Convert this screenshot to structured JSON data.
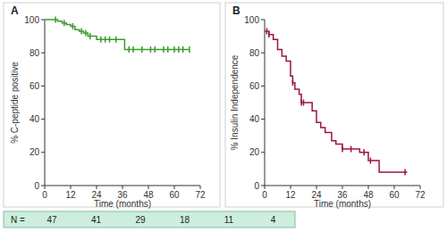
{
  "chart_data": [
    {
      "type": "line",
      "title": "A",
      "y_label": "% C-peptide positive",
      "x_label": "Time (months)",
      "xlim": [
        0,
        72
      ],
      "ylim": [
        0,
        100
      ],
      "xticks": [
        0,
        12,
        24,
        36,
        48,
        60,
        72
      ],
      "yticks": [
        0,
        20,
        40,
        60,
        80,
        100
      ],
      "grid": false,
      "series": [
        {
          "type": "line",
          "line_style": "step",
          "color": "#3d9b2f",
          "x": [
            0,
            3,
            6,
            8,
            10,
            12,
            14,
            16,
            18,
            20,
            24,
            37,
            67
          ],
          "values": [
            100,
            100,
            99,
            98,
            97,
            96,
            94,
            93,
            92,
            90,
            88,
            82,
            82
          ]
        },
        {
          "type": "scatter",
          "marker": "tick",
          "color": "#3d9b2f",
          "x": [
            5,
            9,
            13,
            17,
            19,
            21,
            26,
            28,
            30,
            33,
            39,
            41,
            45,
            49,
            51,
            55,
            57,
            60,
            62,
            64,
            67
          ],
          "values": [
            100,
            98,
            96,
            93,
            92,
            90,
            88,
            88,
            88,
            88,
            82,
            82,
            82,
            82,
            82,
            82,
            82,
            82,
            82,
            82,
            82
          ]
        }
      ]
    },
    {
      "type": "line",
      "title": "B",
      "y_label": "% Insulin Independence",
      "x_label": "Time (months)",
      "xlim": [
        0,
        72
      ],
      "ylim": [
        0,
        100
      ],
      "xticks": [
        0,
        12,
        24,
        36,
        48,
        60,
        72
      ],
      "yticks": [
        0,
        20,
        40,
        60,
        80,
        100
      ],
      "grid": false,
      "series": [
        {
          "type": "line",
          "line_style": "step",
          "color": "#9b1444",
          "x": [
            0,
            1,
            2,
            4,
            6,
            8,
            10,
            12,
            13,
            14,
            16,
            17,
            20,
            22,
            24,
            26,
            28,
            31,
            33,
            36,
            42,
            44,
            48,
            52,
            53,
            66
          ],
          "values": [
            93,
            93,
            91,
            88,
            82,
            78,
            75,
            66,
            62,
            58,
            55,
            50,
            50,
            45,
            38,
            35,
            32,
            27,
            25,
            22,
            22,
            20,
            15,
            15,
            8,
            8
          ]
        },
        {
          "type": "scatter",
          "marker": "tick",
          "color": "#9b1444",
          "x": [
            1,
            2,
            13,
            17,
            18,
            36,
            40,
            46,
            49,
            65
          ],
          "values": [
            93,
            91,
            62,
            50,
            50,
            22,
            22,
            20,
            15,
            8
          ]
        }
      ]
    }
  ],
  "risk_table": {
    "label": "N =",
    "values": [
      47,
      41,
      29,
      18,
      11,
      4
    ]
  }
}
